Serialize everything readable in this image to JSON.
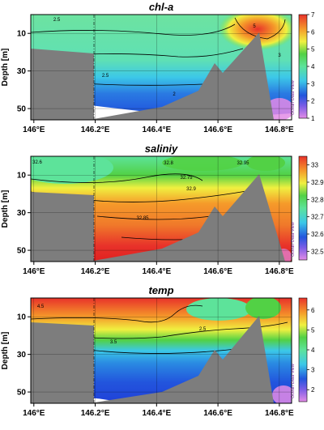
{
  "chart_data": [
    {
      "type": "heatmap",
      "title": "chl-a",
      "ylabel": "Depth [m]",
      "x_ticks": [
        "146°E",
        "146.2°E",
        "146.4°E",
        "146.6°E",
        "146.8°E"
      ],
      "y_ticks": [
        "10",
        "30",
        "50"
      ],
      "colorbar_ticks": [
        "7",
        "6",
        "5",
        "4",
        "3",
        "2",
        "1"
      ],
      "colorbar_range": [
        1,
        7
      ],
      "contour_labels": [
        "2.5",
        "2.5",
        "2",
        "5",
        "3"
      ],
      "watermark": "Ocean Data View",
      "colors": [
        "#e38ce6",
        "#2255dd",
        "#3cc8e8",
        "#5de39a",
        "#52d145",
        "#f0f040",
        "#f59a2a",
        "#e8322a"
      ]
    },
    {
      "type": "heatmap",
      "title": "saliniy",
      "ylabel": "Depth [m]",
      "x_ticks": [
        "146°E",
        "146.2°E",
        "146.4°E",
        "146.6°E",
        "146.8°E"
      ],
      "y_ticks": [
        "10",
        "30",
        "50"
      ],
      "colorbar_ticks": [
        "33",
        "32.9",
        "32.8",
        "32.7",
        "32.6",
        "32.5"
      ],
      "colorbar_range": [
        32.45,
        33.05
      ],
      "contour_labels": [
        "32.6",
        "32.8",
        "32.75",
        "32.85",
        "32.9",
        "32.95"
      ],
      "watermark": "Ocean Data View",
      "colors": [
        "#e38ce6",
        "#2255dd",
        "#3cc8e8",
        "#5de39a",
        "#52d145",
        "#f0f040",
        "#f59a2a",
        "#e8322a"
      ]
    },
    {
      "type": "heatmap",
      "title": "temp",
      "ylabel": "Depth [m]",
      "x_ticks": [
        "146°E",
        "146.2°E",
        "146.4°E",
        "146.6°E",
        "146.8°E"
      ],
      "y_ticks": [
        "10",
        "30",
        "50"
      ],
      "colorbar_ticks": [
        "6",
        "5",
        "4",
        "3",
        "2"
      ],
      "colorbar_range": [
        1.4,
        6.6
      ],
      "contour_labels": [
        "4.5",
        "3.5",
        "2.5"
      ],
      "watermark": "Ocean Data View",
      "colors": [
        "#e38ce6",
        "#2255dd",
        "#3cc8e8",
        "#5de39a",
        "#52d145",
        "#f0f040",
        "#f59a2a",
        "#e8322a"
      ]
    }
  ]
}
